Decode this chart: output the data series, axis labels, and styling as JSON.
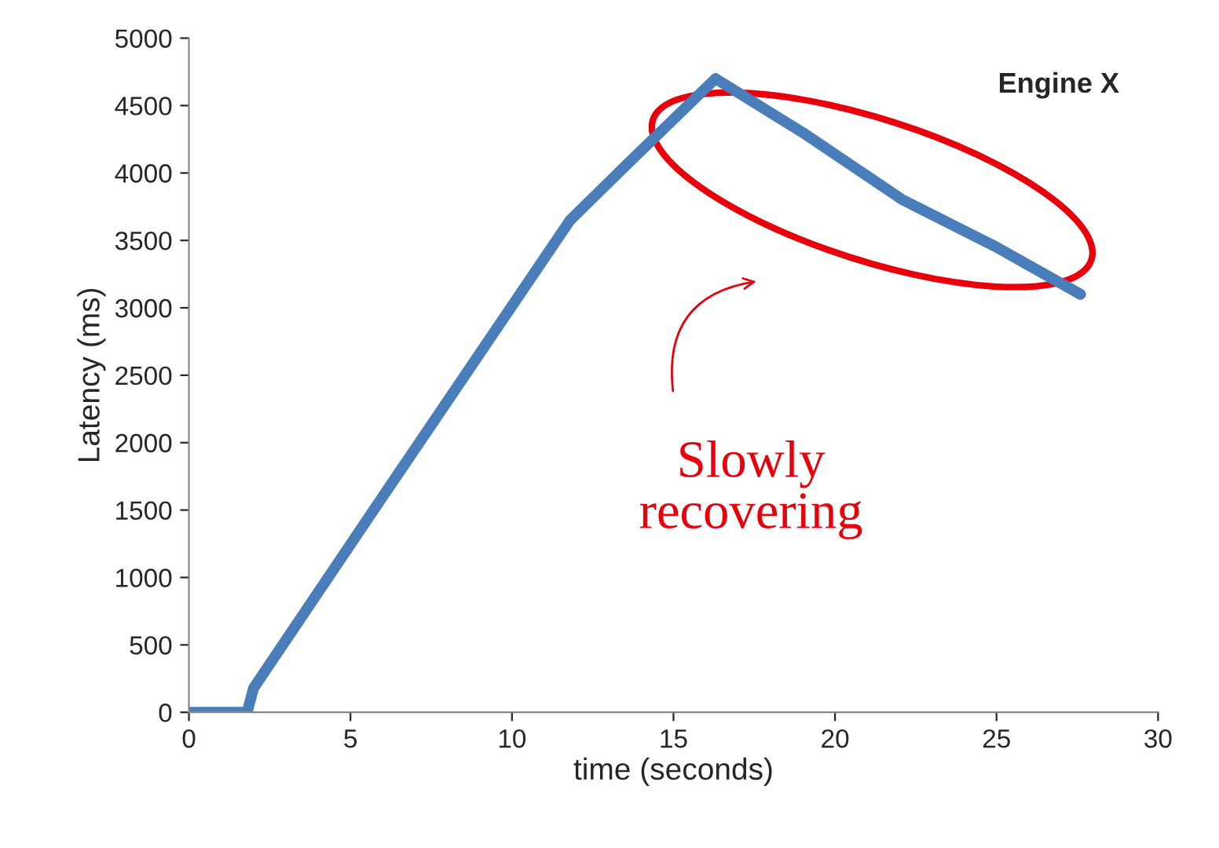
{
  "chart_data": {
    "type": "line",
    "xlabel": "time (seconds)",
    "ylabel": "Latency (ms)",
    "x": [
      0,
      1.8,
      2.0,
      6,
      11.8,
      13.5,
      16.3,
      19,
      22.1,
      25,
      27.6
    ],
    "series": [
      {
        "color": "#4a7ebb",
        "values": [
          0,
          0,
          180,
          1600,
          3650,
          4050,
          4700,
          4300,
          3800,
          3450,
          3100
        ]
      }
    ],
    "xlim": [
      0,
      30
    ],
    "xticks": [
      0,
      5,
      10,
      15,
      20,
      25,
      30
    ],
    "ylim": [
      0,
      5000
    ],
    "yticks": [
      0,
      500,
      1000,
      1500,
      2000,
      2500,
      3000,
      3500,
      4000,
      4500,
      5000
    ],
    "grid": false,
    "legend": false,
    "marker": "none",
    "line_style": "solid",
    "annotations": [
      "Engine X",
      "Slowly\nrecovering"
    ]
  }
}
